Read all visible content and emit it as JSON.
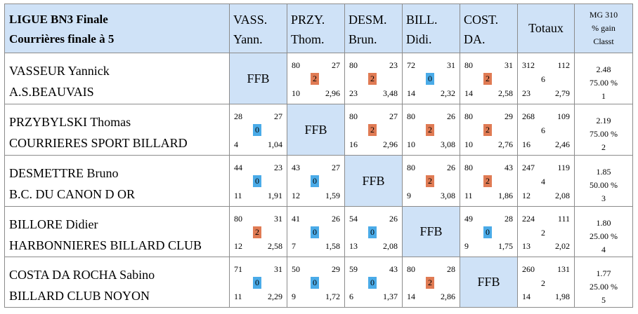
{
  "title": {
    "line1": "LIGUE BN3 Finale",
    "line2": "Courrières finale à 5"
  },
  "columns": [
    {
      "line1": "VASS.",
      "line2": "Yann."
    },
    {
      "line1": "PRZY.",
      "line2": "Thom."
    },
    {
      "line1": "DESM.",
      "line2": "Brun."
    },
    {
      "line1": "BILL.",
      "line2": "Didi."
    },
    {
      "line1": "COST.",
      "line2": "DA."
    }
  ],
  "totals_header": "Totaux",
  "mg_header": {
    "line1": "MG 310",
    "line2": "% gain",
    "line3": "Classt"
  },
  "ffb_label": "FFB",
  "badge_colors": {
    "win": "#e07b54",
    "loss": "#4aabe8"
  },
  "rows": [
    {
      "name": "VASSEUR Yannick",
      "club": "A.S.BEAUVAIS",
      "matches": [
        null,
        {
          "pts": "80",
          "serie": "27",
          "badge": "2",
          "reprises": "10",
          "moy": "2,96",
          "result": "win"
        },
        {
          "pts": "80",
          "serie": "23",
          "badge": "2",
          "reprises": "23",
          "moy": "3,48",
          "result": "win"
        },
        {
          "pts": "72",
          "serie": "31",
          "badge": "0",
          "reprises": "14",
          "moy": "2,32",
          "result": "loss"
        },
        {
          "pts": "80",
          "serie": "31",
          "badge": "2",
          "reprises": "14",
          "moy": "2,58",
          "result": "win"
        }
      ],
      "totals": {
        "pts": "312",
        "serie": "112",
        "mid": "6",
        "reprises": "23",
        "moy": "2,79"
      },
      "mg": {
        "moy": "2.48",
        "pct": "75.00 %",
        "rank": "1"
      }
    },
    {
      "name": "PRZYBYLSKI Thomas",
      "club": "COURRIERES SPORT BILLARD",
      "matches": [
        {
          "pts": "28",
          "serie": "27",
          "badge": "0",
          "reprises": "4",
          "moy": "1,04",
          "result": "loss"
        },
        null,
        {
          "pts": "80",
          "serie": "27",
          "badge": "2",
          "reprises": "16",
          "moy": "2,96",
          "result": "win"
        },
        {
          "pts": "80",
          "serie": "26",
          "badge": "2",
          "reprises": "10",
          "moy": "3,08",
          "result": "win"
        },
        {
          "pts": "80",
          "serie": "29",
          "badge": "2",
          "reprises": "10",
          "moy": "2,76",
          "result": "win"
        }
      ],
      "totals": {
        "pts": "268",
        "serie": "109",
        "mid": "6",
        "reprises": "16",
        "moy": "2,46"
      },
      "mg": {
        "moy": "2.19",
        "pct": "75.00 %",
        "rank": "2"
      }
    },
    {
      "name": "DESMETTRE Bruno",
      "club": "B.C. DU CANON D OR",
      "matches": [
        {
          "pts": "44",
          "serie": "23",
          "badge": "0",
          "reprises": "11",
          "moy": "1,91",
          "result": "loss"
        },
        {
          "pts": "43",
          "serie": "27",
          "badge": "0",
          "reprises": "12",
          "moy": "1,59",
          "result": "loss"
        },
        null,
        {
          "pts": "80",
          "serie": "26",
          "badge": "2",
          "reprises": "9",
          "moy": "3,08",
          "result": "win"
        },
        {
          "pts": "80",
          "serie": "43",
          "badge": "2",
          "reprises": "11",
          "moy": "1,86",
          "result": "win"
        }
      ],
      "totals": {
        "pts": "247",
        "serie": "119",
        "mid": "4",
        "reprises": "12",
        "moy": "2,08"
      },
      "mg": {
        "moy": "1.85",
        "pct": "50.00 %",
        "rank": "3"
      }
    },
    {
      "name": "BILLORE Didier",
      "club": "HARBONNIERES BILLARD CLUB",
      "matches": [
        {
          "pts": "80",
          "serie": "31",
          "badge": "2",
          "reprises": "12",
          "moy": "2,58",
          "result": "win"
        },
        {
          "pts": "41",
          "serie": "26",
          "badge": "0",
          "reprises": "7",
          "moy": "1,58",
          "result": "loss"
        },
        {
          "pts": "54",
          "serie": "26",
          "badge": "0",
          "reprises": "13",
          "moy": "2,08",
          "result": "loss"
        },
        null,
        {
          "pts": "49",
          "serie": "28",
          "badge": "0",
          "reprises": "9",
          "moy": "1,75",
          "result": "loss"
        }
      ],
      "totals": {
        "pts": "224",
        "serie": "111",
        "mid": "2",
        "reprises": "13",
        "moy": "2,02"
      },
      "mg": {
        "moy": "1.80",
        "pct": "25.00 %",
        "rank": "4"
      }
    },
    {
      "name": "COSTA DA ROCHA Sabino",
      "club": "BILLARD CLUB NOYON",
      "matches": [
        {
          "pts": "71",
          "serie": "31",
          "badge": "0",
          "reprises": "11",
          "moy": "2,29",
          "result": "loss"
        },
        {
          "pts": "50",
          "serie": "29",
          "badge": "0",
          "reprises": "9",
          "moy": "1,72",
          "result": "loss"
        },
        {
          "pts": "59",
          "serie": "43",
          "badge": "0",
          "reprises": "6",
          "moy": "1,37",
          "result": "loss"
        },
        {
          "pts": "80",
          "serie": "28",
          "badge": "2",
          "reprises": "14",
          "moy": "2,86",
          "result": "win"
        },
        null
      ],
      "totals": {
        "pts": "260",
        "serie": "131",
        "mid": "2",
        "reprises": "14",
        "moy": "1,98"
      },
      "mg": {
        "moy": "1.77",
        "pct": "25.00 %",
        "rank": "5"
      }
    }
  ]
}
